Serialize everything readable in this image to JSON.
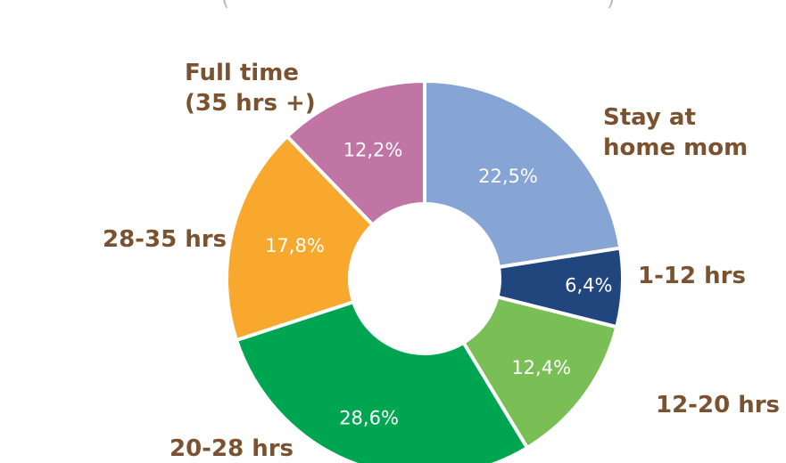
{
  "chart_data": {
    "type": "pie",
    "donut": true,
    "categories": [
      "Stay at home mom",
      "1-12 hrs",
      "12-20 hrs",
      "20-28 hrs",
      "28-35 hrs",
      "Full time (35 hrs +)"
    ],
    "category_lines": [
      [
        "Stay at",
        "home mom"
      ],
      [
        "1-12 hrs"
      ],
      [
        "12-20 hrs"
      ],
      [
        "20-28 hrs"
      ],
      [
        "28-35 hrs"
      ],
      [
        "Full time",
        "(35 hrs +)"
      ]
    ],
    "values": [
      22.5,
      6.4,
      12.4,
      28.6,
      17.8,
      12.2
    ],
    "value_labels": [
      "22,5%",
      "6,4%",
      "12,4%",
      "28,6%",
      "17,8%",
      "12,2%"
    ],
    "colors": [
      "#86A4D4",
      "#21467E",
      "#79BF55",
      "#00A551",
      "#F8A82C",
      "#C075A5"
    ],
    "label_color": "#7A5230",
    "value_label_color": "#ffffff",
    "title": "",
    "legend": "none"
  }
}
